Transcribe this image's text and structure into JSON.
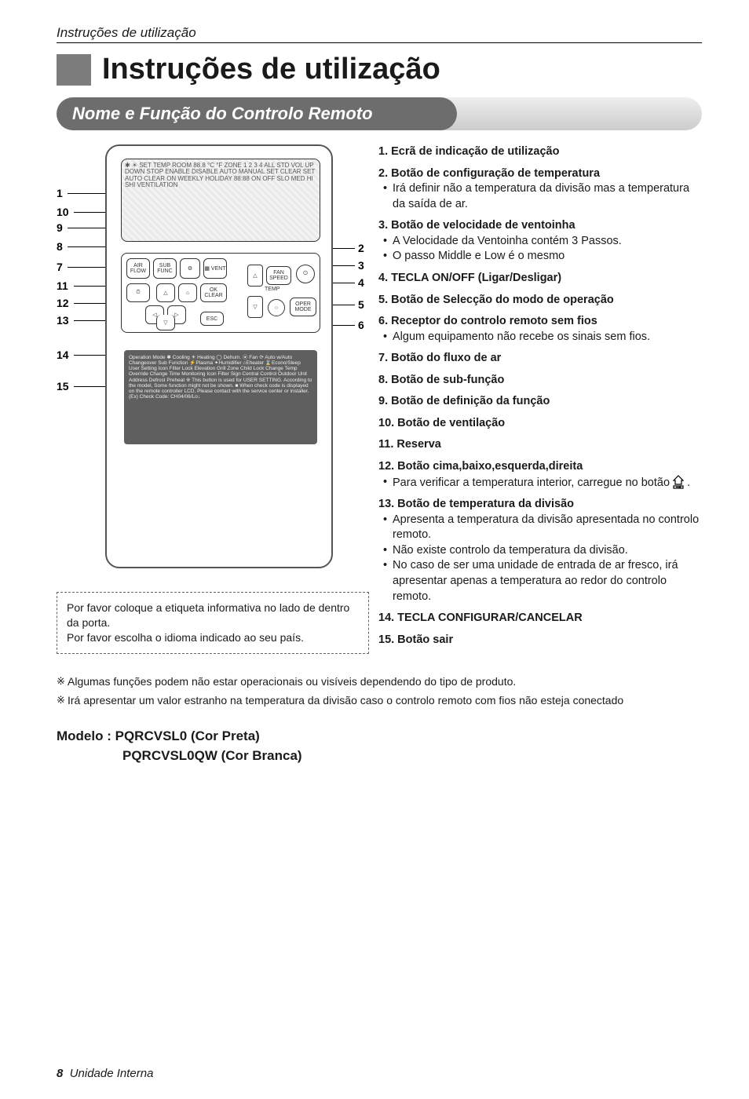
{
  "running_head": "Instruções de utilização",
  "page_title": "Instruções de utilização",
  "section_title": "Nome e Função do Controlo Remoto",
  "diagram": {
    "left_numbers": [
      "1",
      "10",
      "9",
      "8",
      "7",
      "11",
      "12",
      "13",
      "14",
      "15"
    ],
    "right_numbers": [
      "2",
      "3",
      "4",
      "5",
      "6"
    ],
    "lcd_filler": "✱ ☀ SET TEMP ROOM 88.8 °C °F ZONE 1 2 3 4 ALL STD VOL UP DOWN STOP ENABLE DISABLE AUTO MANUAL SET CLEAR SET AUTO CLEAR ON WEEKLY HOLIDAY 88:88 ON OFF SLO MED HI SHI VENTILATION",
    "btns": {
      "air_flow": "AIR\nFLOW",
      "sub_func": "SUB\nFUNC",
      "gear": "⚙",
      "vent": "▦\nVENT",
      "timer": "⏱",
      "up": "△",
      "home": "⌂",
      "ok": "OK\nCLEAR",
      "left": "◁",
      "right": "▷",
      "down": "▽",
      "esc": "ESC",
      "fan": "FAN\nSPEED",
      "power": "⏻",
      "temp": "TEMP",
      "tri_up": "△",
      "tri_dn": "▽",
      "circ": "○",
      "oper": "OPER\nMODE"
    },
    "plate_text": "Operation Mode  ✱ Cooling  ☀ Heating  ◯ Dehum.  ⦿ Fan  ⟳ Auto w/Auto Changeover\nSub Function  ⚡Plasma  ✦Humidifier  ⌂Eheater  ⌛Econo/Sleep\nUser Setting Icon  Filter  Lock  Elevation Grill  Zone  Child Lock  Change Temp  Override Change Time\nMonitoring Icon  Filter Sign  Central Control  Outdoor Unit  Address  Defrost  Preheat\n※ This button is used for USER SETTING.\nAccording to the model, Some function might not be shown.\n■ When check code is displayed on the remote controller LCD, Please contact with the service center or installer. (Ex) Check Code: CH04/06/Lo↓",
    "note_line1": "Por favor coloque a etiqueta informativa no lado de dentro da porta.",
    "note_line2": "Por favor escolha o idioma indicado ao seu país."
  },
  "items": [
    {
      "head": "1.  Ecrã de indicação de utilização"
    },
    {
      "head": "2.  Botão de configuração de temperatura",
      "subs": [
        "Irá definir não a temperatura da divisão mas a temperatura da saída de ar."
      ]
    },
    {
      "head": "3.  Botão de velocidade de ventoinha",
      "subs": [
        "A Velocidade da Ventoinha contém 3 Passos.",
        "O passo Middle e Low é o mesmo"
      ]
    },
    {
      "head": "4.  TECLA ON/OFF (Ligar/Desligar)"
    },
    {
      "head": "5.  Botão de Selecção do modo de operação"
    },
    {
      "head": "6.  Receptor do controlo remoto sem fios",
      "subs": [
        "Algum equipamento não recebe os sinais sem fios."
      ]
    },
    {
      "head": "7.  Botão do fluxo de ar"
    },
    {
      "head": "8.  Botão de sub-função"
    },
    {
      "head": "9.  Botão de definição da função"
    },
    {
      "head": "10. Botão de ventilação"
    },
    {
      "head": "11. Reserva"
    },
    {
      "head": "12. Botão cima,baixo,esquerda,direita",
      "subs_html": "Para verificar a temperatura interior, carregue no botão <svg class='home-icon' width='14' height='18' viewBox='0 0 14 18'><path d='M7 1 L13 7 L11 7 L11 12 L3 12 L3 7 L1 7 Z' fill='none' stroke='#000' stroke-width='1.2'/><rect x='1' y='14' width='12' height='3' fill='none' stroke='#000' stroke-width='1.2'/><path d='M4 15.5 L10 15.5 M8.5 14.5 L10 15.5 L8.5 16.5' fill='none' stroke='#000' stroke-width='1'/></svg>  ."
    },
    {
      "head": "13. Botão de temperatura da divisão",
      "subs": [
        "Apresenta a temperatura da divisão apresentada no controlo remoto.",
        "Não existe controlo da temperatura da divisão.",
        "No caso de ser uma unidade de entrada de ar fresco, irá apresentar apenas a temperatura ao redor do controlo remoto."
      ]
    },
    {
      "head": "14. TECLA CONFIGURAR/CANCELAR"
    },
    {
      "head": "15. Botão sair"
    }
  ],
  "footnotes": [
    "Algumas funções podem não estar operacionais ou visíveis dependendo do tipo de produto.",
    "Irá apresentar um valor estranho na temperatura da divisão caso o controlo remoto com fios não esteja conectado"
  ],
  "model_label": "Modelo : ",
  "model_line1": "PQRCVSL0 (Cor Preta)",
  "model_line2": "PQRCVSL0QW (Cor Branca)",
  "footer_page": "8",
  "footer_text": "Unidade Interna"
}
